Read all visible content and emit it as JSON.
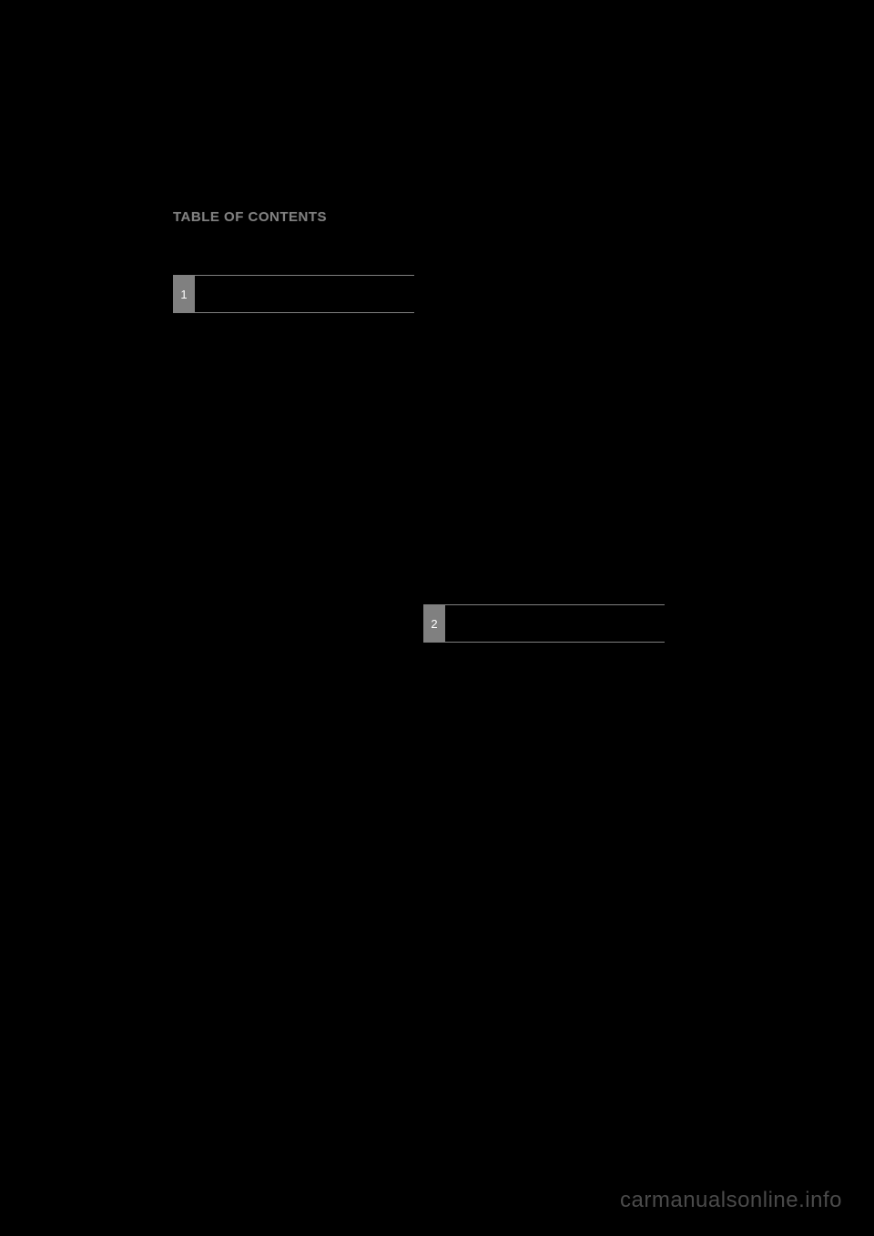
{
  "page": {
    "title": "TABLE OF CONTENTS",
    "background_color": "#000000",
    "text_color": "#808080",
    "tab_bg_color": "#808080",
    "tab_number_color": "#ffffff",
    "border_color": "#808080"
  },
  "sections": [
    {
      "number": "1",
      "label": ""
    },
    {
      "number": "2",
      "label": ""
    }
  ],
  "watermark": "carmanualsonline.info"
}
